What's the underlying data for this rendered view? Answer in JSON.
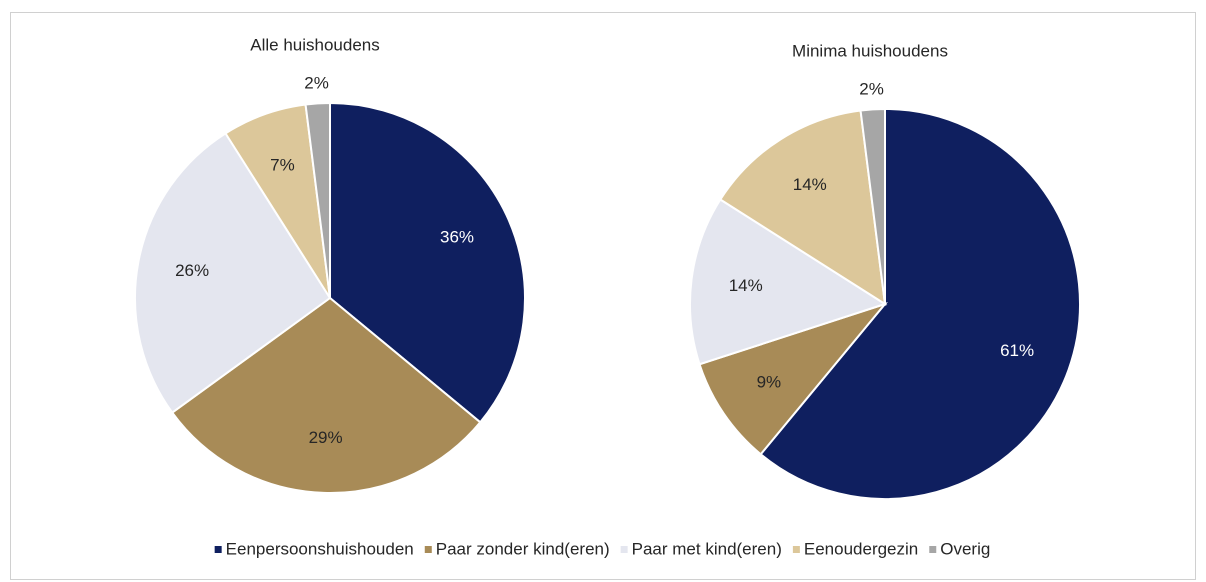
{
  "chart_data": [
    {
      "type": "pie",
      "title": "Alle huishoudens",
      "categories": [
        "Eenpersoonshuishouden",
        "Paar zonder kind(eren)",
        "Paar met kind(eren)",
        "Eenoudergezin",
        "Overig"
      ],
      "values": [
        36,
        29,
        26,
        7,
        2
      ],
      "value_labels": [
        "36%",
        "29%",
        "26%",
        "7%",
        "2%"
      ],
      "colors": [
        "#0f1f5f",
        "#a88b57",
        "#e4e6ef",
        "#dcc79a",
        "#a6a6a6"
      ]
    },
    {
      "type": "pie",
      "title": "Minima huishoudens",
      "categories": [
        "Eenpersoonshuishouden",
        "Paar zonder kind(eren)",
        "Paar met kind(eren)",
        "Eenoudergezin",
        "Overig"
      ],
      "values": [
        61,
        9,
        14,
        14,
        2
      ],
      "value_labels": [
        "61%",
        "9%",
        "14%",
        "14%",
        "2%"
      ],
      "colors": [
        "#0f1f5f",
        "#a88b57",
        "#e4e6ef",
        "#dcc79a",
        "#a6a6a6"
      ]
    }
  ]
}
